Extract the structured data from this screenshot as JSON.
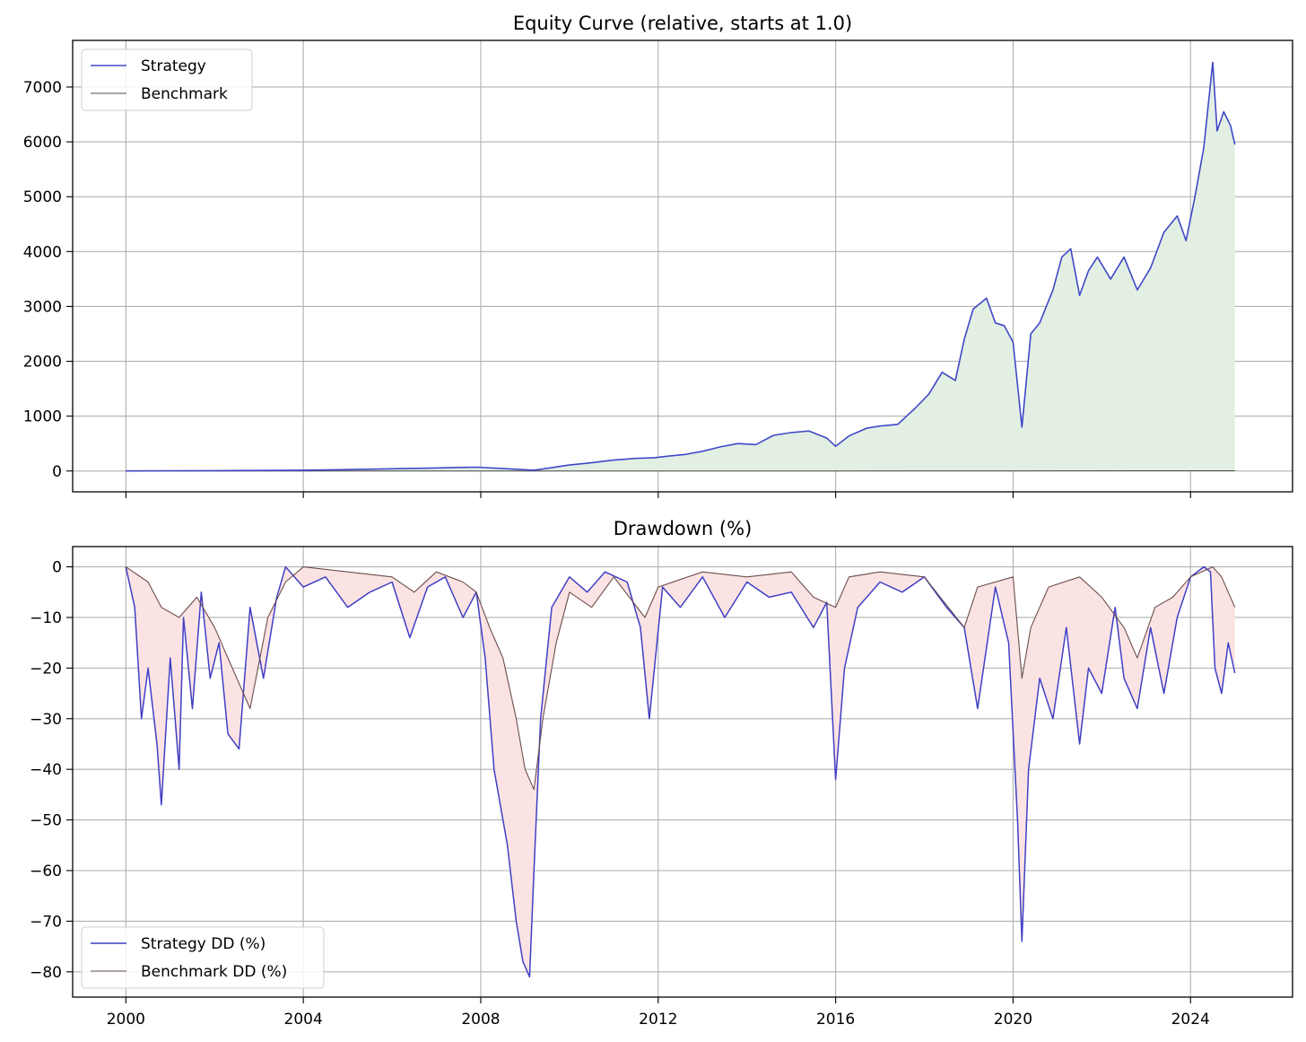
{
  "chart_data": [
    {
      "type": "line",
      "title": "Equity Curve (relative, starts at 1.0)",
      "xlabel": "",
      "ylabel": "",
      "x_range": [
        1998.8,
        2026.3
      ],
      "ylim": [
        -380,
        7850
      ],
      "yticks": [
        0,
        1000,
        2000,
        3000,
        4000,
        5000,
        6000,
        7000
      ],
      "xticks": [
        2000,
        2004,
        2008,
        2012,
        2016,
        2020,
        2024
      ],
      "grid": true,
      "legend": "top-left",
      "fill_between_series_color": "#e3efe2",
      "series": [
        {
          "name": "Strategy",
          "color": "#3f48c8",
          "x": [
            2000.0,
            2001.0,
            2002.0,
            2003.0,
            2004.0,
            2005.0,
            2006.0,
            2007.0,
            2007.9,
            2008.6,
            2009.2,
            2009.6,
            2010.0,
            2010.5,
            2011.0,
            2011.5,
            2011.9,
            2012.2,
            2012.6,
            2013.0,
            2013.4,
            2013.8,
            2014.2,
            2014.6,
            2015.0,
            2015.4,
            2015.8,
            2016.0,
            2016.3,
            2016.7,
            2017.0,
            2017.4,
            2017.8,
            2018.1,
            2018.4,
            2018.7,
            2018.9,
            2019.1,
            2019.4,
            2019.6,
            2019.8,
            2020.0,
            2020.2,
            2020.4,
            2020.6,
            2020.9,
            2021.1,
            2021.3,
            2021.5,
            2021.7,
            2021.9,
            2022.2,
            2022.5,
            2022.8,
            2023.1,
            2023.4,
            2023.7,
            2023.9,
            2024.1,
            2024.3,
            2024.5,
            2024.6,
            2024.75,
            2024.9,
            2025.0
          ],
          "values": [
            1,
            4,
            6,
            9,
            14,
            25,
            40,
            55,
            70,
            40,
            15,
            60,
            110,
            150,
            200,
            230,
            240,
            270,
            300,
            360,
            440,
            500,
            480,
            650,
            700,
            730,
            600,
            450,
            640,
            780,
            820,
            850,
            1150,
            1400,
            1800,
            1650,
            2400,
            2950,
            3150,
            2700,
            2650,
            2350,
            800,
            2500,
            2700,
            3300,
            3900,
            4050,
            3200,
            3650,
            3900,
            3500,
            3900,
            3300,
            3700,
            4350,
            4650,
            4200,
            5000,
            5900,
            7450,
            6200,
            6550,
            6300,
            5950
          ]
        },
        {
          "name": "Benchmark",
          "color": "#4d4d4d",
          "x": [
            2000.0,
            2004.0,
            2008.0,
            2009.2,
            2012.0,
            2016.0,
            2020.0,
            2024.0,
            2025.0
          ],
          "values": [
            1,
            1,
            1.1,
            0.7,
            1.3,
            2,
            3,
            4.5,
            5
          ]
        }
      ]
    },
    {
      "type": "line",
      "title": "Drawdown (%)",
      "xlabel": "",
      "ylabel": "",
      "x_range": [
        1998.8,
        2026.3
      ],
      "ylim": [
        -85,
        4
      ],
      "yticks": [
        0,
        -10,
        -20,
        -30,
        -40,
        -50,
        -60,
        -70,
        -80
      ],
      "xticks": [
        2000,
        2004,
        2008,
        2012,
        2016,
        2020,
        2024
      ],
      "grid": true,
      "legend": "bottom-left",
      "fill_between_series_color": "#fce3e3",
      "series": [
        {
          "name": "Strategy DD (%)",
          "color": "#3f3fc4",
          "x": [
            2000.0,
            2000.2,
            2000.35,
            2000.5,
            2000.7,
            2000.8,
            2001.0,
            2001.2,
            2001.3,
            2001.5,
            2001.7,
            2001.9,
            2002.1,
            2002.3,
            2002.55,
            2002.8,
            2003.1,
            2003.4,
            2003.6,
            2004.0,
            2004.5,
            2005.0,
            2005.5,
            2006.0,
            2006.4,
            2006.8,
            2007.2,
            2007.6,
            2007.9,
            2008.1,
            2008.3,
            2008.6,
            2008.8,
            2008.95,
            2009.1,
            2009.2,
            2009.35,
            2009.6,
            2010.0,
            2010.4,
            2010.8,
            2011.3,
            2011.6,
            2011.8,
            2012.1,
            2012.5,
            2013.0,
            2013.5,
            2014.0,
            2014.5,
            2015.0,
            2015.5,
            2015.8,
            2016.0,
            2016.2,
            2016.5,
            2017.0,
            2017.5,
            2018.0,
            2018.5,
            2018.9,
            2019.2,
            2019.6,
            2019.9,
            2020.1,
            2020.2,
            2020.35,
            2020.6,
            2020.9,
            2021.2,
            2021.5,
            2021.7,
            2022.0,
            2022.3,
            2022.5,
            2022.8,
            2023.1,
            2023.4,
            2023.7,
            2024.0,
            2024.3,
            2024.45,
            2024.55,
            2024.7,
            2024.85,
            2025.0
          ],
          "values": [
            0,
            -8,
            -30,
            -20,
            -35,
            -47,
            -18,
            -40,
            -10,
            -28,
            -5,
            -22,
            -15,
            -33,
            -36,
            -8,
            -22,
            -6,
            0,
            -4,
            -2,
            -8,
            -5,
            -3,
            -14,
            -4,
            -2,
            -10,
            -5,
            -18,
            -40,
            -55,
            -70,
            -78,
            -81,
            -60,
            -30,
            -8,
            -2,
            -5,
            -1,
            -3,
            -12,
            -30,
            -4,
            -8,
            -2,
            -10,
            -3,
            -6,
            -5,
            -12,
            -7,
            -42,
            -20,
            -8,
            -3,
            -5,
            -2,
            -8,
            -12,
            -28,
            -4,
            -15,
            -50,
            -74,
            -40,
            -22,
            -30,
            -12,
            -35,
            -20,
            -25,
            -8,
            -22,
            -28,
            -12,
            -25,
            -10,
            -2,
            0,
            -1,
            -20,
            -25,
            -15,
            -21
          ]
        },
        {
          "name": "Benchmark DD (%)",
          "color": "#6b4d4d",
          "x": [
            2000.0,
            2000.5,
            2000.8,
            2001.2,
            2001.6,
            2002.0,
            2002.4,
            2002.8,
            2003.2,
            2003.6,
            2004.0,
            2005.0,
            2006.0,
            2006.5,
            2007.0,
            2007.6,
            2007.9,
            2008.2,
            2008.5,
            2008.8,
            2009.0,
            2009.2,
            2009.4,
            2009.7,
            2010.0,
            2010.5,
            2011.0,
            2011.7,
            2012.0,
            2013.0,
            2014.0,
            2015.0,
            2015.5,
            2016.0,
            2016.3,
            2017.0,
            2018.0,
            2018.9,
            2019.2,
            2020.0,
            2020.2,
            2020.4,
            2020.8,
            2021.5,
            2022.0,
            2022.5,
            2022.8,
            2023.2,
            2023.6,
            2024.0,
            2024.5,
            2024.7,
            2025.0
          ],
          "values": [
            0,
            -3,
            -8,
            -10,
            -6,
            -12,
            -20,
            -28,
            -10,
            -3,
            0,
            -1,
            -2,
            -5,
            -1,
            -3,
            -5,
            -12,
            -18,
            -30,
            -40,
            -44,
            -30,
            -15,
            -5,
            -8,
            -2,
            -10,
            -4,
            -1,
            -2,
            -1,
            -6,
            -8,
            -2,
            -1,
            -2,
            -12,
            -4,
            -2,
            -22,
            -12,
            -4,
            -2,
            -6,
            -12,
            -18,
            -8,
            -6,
            -2,
            0,
            -2,
            -8
          ]
        }
      ]
    }
  ]
}
